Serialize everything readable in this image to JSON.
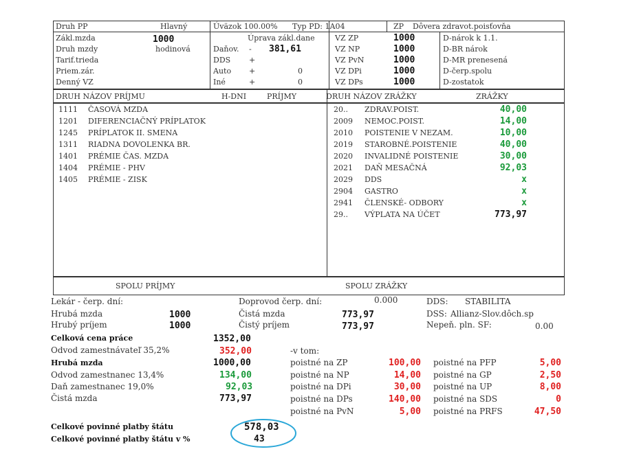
{
  "header": {
    "druh_pp_label": "Druh PP",
    "druh_pp_value": "Hlavný",
    "uvazok": "Úväzok 100.00%",
    "typ_pd": "Typ PD: 1A04",
    "zp_label": "ZP",
    "zp_value": "Dôvera zdravot.poisťovňa"
  },
  "left_info": [
    {
      "label": "Zákl.mzda",
      "value": "1000"
    },
    {
      "label": "Druh mzdy",
      "value": "hodinová"
    },
    {
      "label": "Tarif.trieda",
      "value": ""
    },
    {
      "label": "Priem.zár.",
      "value": ""
    },
    {
      "label": "Denný VZ",
      "value": ""
    }
  ],
  "uprava": {
    "title": "Úprava zákl.dane",
    "rows": [
      {
        "label": "Daňov.",
        "sign": "-",
        "value": "381,61"
      },
      {
        "label": "DDS",
        "sign": "+",
        "value": ""
      },
      {
        "label": "Auto",
        "sign": "+",
        "value": "0"
      },
      {
        "label": "Iné",
        "sign": "+",
        "value": "0"
      }
    ]
  },
  "vz": [
    {
      "label": "VZ ZP",
      "value": "1000"
    },
    {
      "label": "VZ NP",
      "value": "1000"
    },
    {
      "label": "VZ PvN",
      "value": "1000"
    },
    {
      "label": "VZ DPi",
      "value": "1000"
    },
    {
      "label": "VZ DPs",
      "value": "1000"
    }
  ],
  "dovolenka": [
    "D-nárok k 1.1.",
    "D-BR nárok",
    "D-MR prenesená",
    "D-čerp.spolu",
    "D-zostatok"
  ],
  "table_headers": {
    "left": "DRUH NÁZOV PRÍJMU",
    "hdni": "H-DNI",
    "prijmy": "PRÍJMY",
    "right": "DRUH NÁZOV ZRÁŽKY",
    "zrazky": "ZRÁŽKY"
  },
  "prijmy": [
    {
      "code": "1111",
      "name": "ČASOVÁ MZDA"
    },
    {
      "code": "1201",
      "name": "DIFERENCIAČNÝ PRÍPLATOK"
    },
    {
      "code": "1245",
      "name": "PRÍPLATOK II. SMENA"
    },
    {
      "code": "1311",
      "name": "RIADNA DOVOLENKA BR."
    },
    {
      "code": "1401",
      "name": "PRÉMIE ČAS. MZDA"
    },
    {
      "code": "1404",
      "name": "PRÉMIE - PHV"
    },
    {
      "code": "1405",
      "name": "PRÉMIE - ZISK"
    }
  ],
  "zrazky": [
    {
      "code": "20..",
      "name": "ZDRAV.POIST.",
      "value": "40,00",
      "color": "green"
    },
    {
      "code": "2009",
      "name": "NEMOC.POIST.",
      "value": "14,00",
      "color": "green"
    },
    {
      "code": "2010",
      "name": "POISTENIE V NEZAM.",
      "value": "10,00",
      "color": "green"
    },
    {
      "code": "2019",
      "name": "STAROBNÉ.POISTENIE",
      "value": "40,00",
      "color": "green"
    },
    {
      "code": "2020",
      "name": "INVALIDNÉ POISTENIE",
      "value": "30,00",
      "color": "green"
    },
    {
      "code": "2021",
      "name": "DAŇ MESAČNÁ",
      "value": "92,03",
      "color": "green"
    },
    {
      "code": "2029",
      "name": "DDS",
      "value": "x",
      "color": "green"
    },
    {
      "code": "2904",
      "name": "GASTRO",
      "value": "x",
      "color": "green"
    },
    {
      "code": "2941",
      "name": "ČLENSKÉ- ODBORY",
      "value": "x",
      "color": "green"
    },
    {
      "code": "29..",
      "name": "VÝPLATA NA ÚČET",
      "value": "773,97",
      "color": "black"
    }
  ],
  "spolu": {
    "prijmy": "SPOLU PRÍJMY",
    "zrazky": "SPOLU ZRÁŽKY"
  },
  "summary": {
    "lekar_label": "Lekár - čerp. dní:",
    "doprovod_label": "Doprovod čerp. dní:",
    "doprovod_value": "0.000",
    "dds_label": "DDS:",
    "dds_value": "STABILITA",
    "hruba_label": "Hrubá mzda",
    "hruba_value": "1000",
    "cista_label": "Čistá mzda",
    "cista_value": "773,97",
    "dss_label": "DSS:",
    "dss_value": "Allianz-Slov.dôch.sp",
    "hruby_prijem_label": "Hrubý príjem",
    "hruby_prijem_value": "1000",
    "cisty_prijem_label": "Čistý príjem",
    "cisty_prijem_value": "773,97",
    "nepen_label": "Nepeň. pln. SF:",
    "nepen_value": "0.00"
  },
  "costs": [
    {
      "label": "Celková cena práce",
      "value": "1352,00",
      "label_bold": true,
      "color": "black"
    },
    {
      "label": "Odvod zamestnávateľ 35,2%",
      "value": "352,00",
      "label_bold": false,
      "color": "red"
    },
    {
      "label": "Hrubá mzda",
      "value": "1000,00",
      "label_bold": true,
      "color": "black"
    },
    {
      "label": "Odvod zamestnanec 13,4%",
      "value": "134,00",
      "label_bold": false,
      "color": "green"
    },
    {
      "label": "Daň zamestnanec 19,0%",
      "value": "92,03",
      "label_bold": false,
      "color": "green"
    },
    {
      "label": "Čistá mzda",
      "value": "773,97",
      "label_bold": false,
      "color": "black"
    }
  ],
  "vtom_label": "-v tom:",
  "poistne_mid": [
    {
      "label": "poistné na ZP",
      "value": "100,00"
    },
    {
      "label": "poistné na NP",
      "value": "14,00"
    },
    {
      "label": "poistné na DPi",
      "value": "30,00"
    },
    {
      "label": "poistné na DPs",
      "value": "140,00"
    },
    {
      "label": "poistné na PvN",
      "value": "5,00"
    }
  ],
  "poistne_right": [
    {
      "label": "poistné na PFP",
      "value": "5,00"
    },
    {
      "label": "poistné na GP",
      "value": "2,50"
    },
    {
      "label": "poistné na UP",
      "value": "8,00"
    },
    {
      "label": "poistné na SDS",
      "value": "0"
    },
    {
      "label": "poistné na PRFS",
      "value": "47,50"
    }
  ],
  "totals": {
    "platby_label": "Celkové povinné platby štátu",
    "platby_value": "578,03",
    "platby_pct_label": "Celkové povinné platby štátu v %",
    "platby_pct_value": "43"
  },
  "colors": {
    "green": "#1a9a3a",
    "red": "#e02020",
    "highlight": "#2aa7d8"
  }
}
